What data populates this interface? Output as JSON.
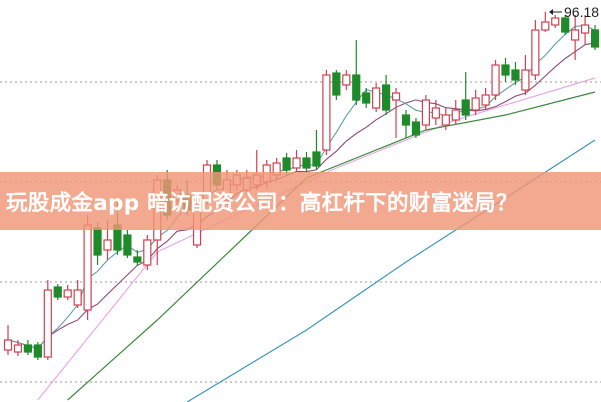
{
  "title": "玩股成金app 暗访配资公司：高杠杆下的财富迷局？",
  "chart_data": {
    "type": "candlestick",
    "max_label": "96.18",
    "grid": "horizontal dotted",
    "ylim": [
      57.2,
      97.4
    ],
    "gridlines": [
      89.18,
      79.18,
      69.18,
      59.18
    ],
    "colors": {
      "up": "#d04050",
      "down": "#1f8a2a",
      "ma5": "#5aa0a0",
      "ma10": "#8a4a78",
      "pink": "#e8a8e8",
      "green": "#3d8a3d",
      "blue": "#3a98b8"
    },
    "candles": [
      [
        62.38,
        64.88,
        61.88,
        63.38
      ],
      [
        62.18,
        63.38,
        61.78,
        62.88
      ],
      [
        62.88,
        63.38,
        61.88,
        62.18
      ],
      [
        62.88,
        63.18,
        61.38,
        61.68
      ],
      [
        61.68,
        69.38,
        61.38,
        68.38
      ],
      [
        68.68,
        68.98,
        67.38,
        67.68
      ],
      [
        67.68,
        68.88,
        67.38,
        68.38
      ],
      [
        66.88,
        69.38,
        66.58,
        68.38
      ],
      [
        66.38,
        75.88,
        65.38,
        74.88
      ],
      [
        74.58,
        75.18,
        70.88,
        71.88
      ],
      [
        72.38,
        75.38,
        71.38,
        73.38
      ],
      [
        74.88,
        77.38,
        71.88,
        72.38
      ],
      [
        73.88,
        74.38,
        71.58,
        71.88
      ],
      [
        71.68,
        72.38,
        70.78,
        71.18
      ],
      [
        70.88,
        73.88,
        70.38,
        73.38
      ],
      [
        73.38,
        79.88,
        70.88,
        79.38
      ],
      [
        79.38,
        80.38,
        75.38,
        75.88
      ],
      [
        77.38,
        78.88,
        76.38,
        78.38
      ],
      [
        77.88,
        79.38,
        75.88,
        76.38
      ],
      [
        72.88,
        77.88,
        72.58,
        77.38
      ],
      [
        77.38,
        81.38,
        76.88,
        80.88
      ],
      [
        80.88,
        81.38,
        78.38,
        78.88
      ],
      [
        77.38,
        80.38,
        76.88,
        79.38
      ],
      [
        78.88,
        80.38,
        78.38,
        79.88
      ],
      [
        78.38,
        80.38,
        77.88,
        79.58
      ],
      [
        78.88,
        82.38,
        78.38,
        79.88
      ],
      [
        79.18,
        81.38,
        78.58,
        80.88
      ],
      [
        79.88,
        81.58,
        79.38,
        81.08
      ],
      [
        81.58,
        82.08,
        79.88,
        80.38
      ],
      [
        80.58,
        82.38,
        80.18,
        81.58
      ],
      [
        81.58,
        82.18,
        80.18,
        80.58
      ],
      [
        82.18,
        84.38,
        80.38,
        80.78
      ],
      [
        82.38,
        90.38,
        81.88,
        89.88
      ],
      [
        90.08,
        90.38,
        87.38,
        87.88
      ],
      [
        88.88,
        90.38,
        88.38,
        89.88
      ],
      [
        89.88,
        93.38,
        86.88,
        87.38
      ],
      [
        88.08,
        88.58,
        86.58,
        87.08
      ],
      [
        86.58,
        89.08,
        86.18,
        88.58
      ],
      [
        88.88,
        89.88,
        85.88,
        86.38
      ],
      [
        87.38,
        88.58,
        83.58,
        88.08
      ],
      [
        85.88,
        86.38,
        83.58,
        84.88
      ],
      [
        85.18,
        85.58,
        83.58,
        83.88
      ],
      [
        84.88,
        87.88,
        84.38,
        87.38
      ],
      [
        85.58,
        87.38,
        84.88,
        86.58
      ],
      [
        84.88,
        86.58,
        84.38,
        85.88
      ],
      [
        85.38,
        87.38,
        84.88,
        86.38
      ],
      [
        87.38,
        90.18,
        85.38,
        85.88
      ],
      [
        86.38,
        88.38,
        85.88,
        87.58
      ],
      [
        86.88,
        88.58,
        86.38,
        87.88
      ],
      [
        87.88,
        91.38,
        87.38,
        90.88
      ],
      [
        90.88,
        91.58,
        89.18,
        89.88
      ],
      [
        90.38,
        91.18,
        88.88,
        89.38
      ],
      [
        88.38,
        91.88,
        87.88,
        90.38
      ],
      [
        89.88,
        95.38,
        89.38,
        94.38
      ],
      [
        94.38,
        96.18,
        94.18,
        95.18
      ],
      [
        94.88,
        95.88,
        94.58,
        95.58
      ],
      [
        95.58,
        95.88,
        93.88,
        94.18
      ],
      [
        93.38,
        95.88,
        91.38,
        94.38
      ],
      [
        94.08,
        95.88,
        92.88,
        94.88
      ],
      [
        94.38,
        94.88,
        92.38,
        92.68
      ]
    ],
    "candle_fields": [
      "open",
      "high",
      "low",
      "close"
    ],
    "long_lines": [
      {
        "key": "pink",
        "index": [
          3,
          15,
          25,
          33,
          45,
          59
        ],
        "values": [
          57.38,
          72.18,
          76.88,
          80.58,
          85.38,
          89.58
        ]
      },
      {
        "key": "green",
        "index": [
          6,
          15,
          30,
          42,
          50,
          59
        ],
        "values": [
          57.38,
          65.38,
          79.58,
          84.38,
          85.88,
          88.18
        ]
      },
      {
        "key": "blue",
        "index": [
          18,
          30,
          40,
          50,
          59
        ],
        "values": [
          57.18,
          64.38,
          71.18,
          77.58,
          83.38
        ]
      }
    ]
  }
}
